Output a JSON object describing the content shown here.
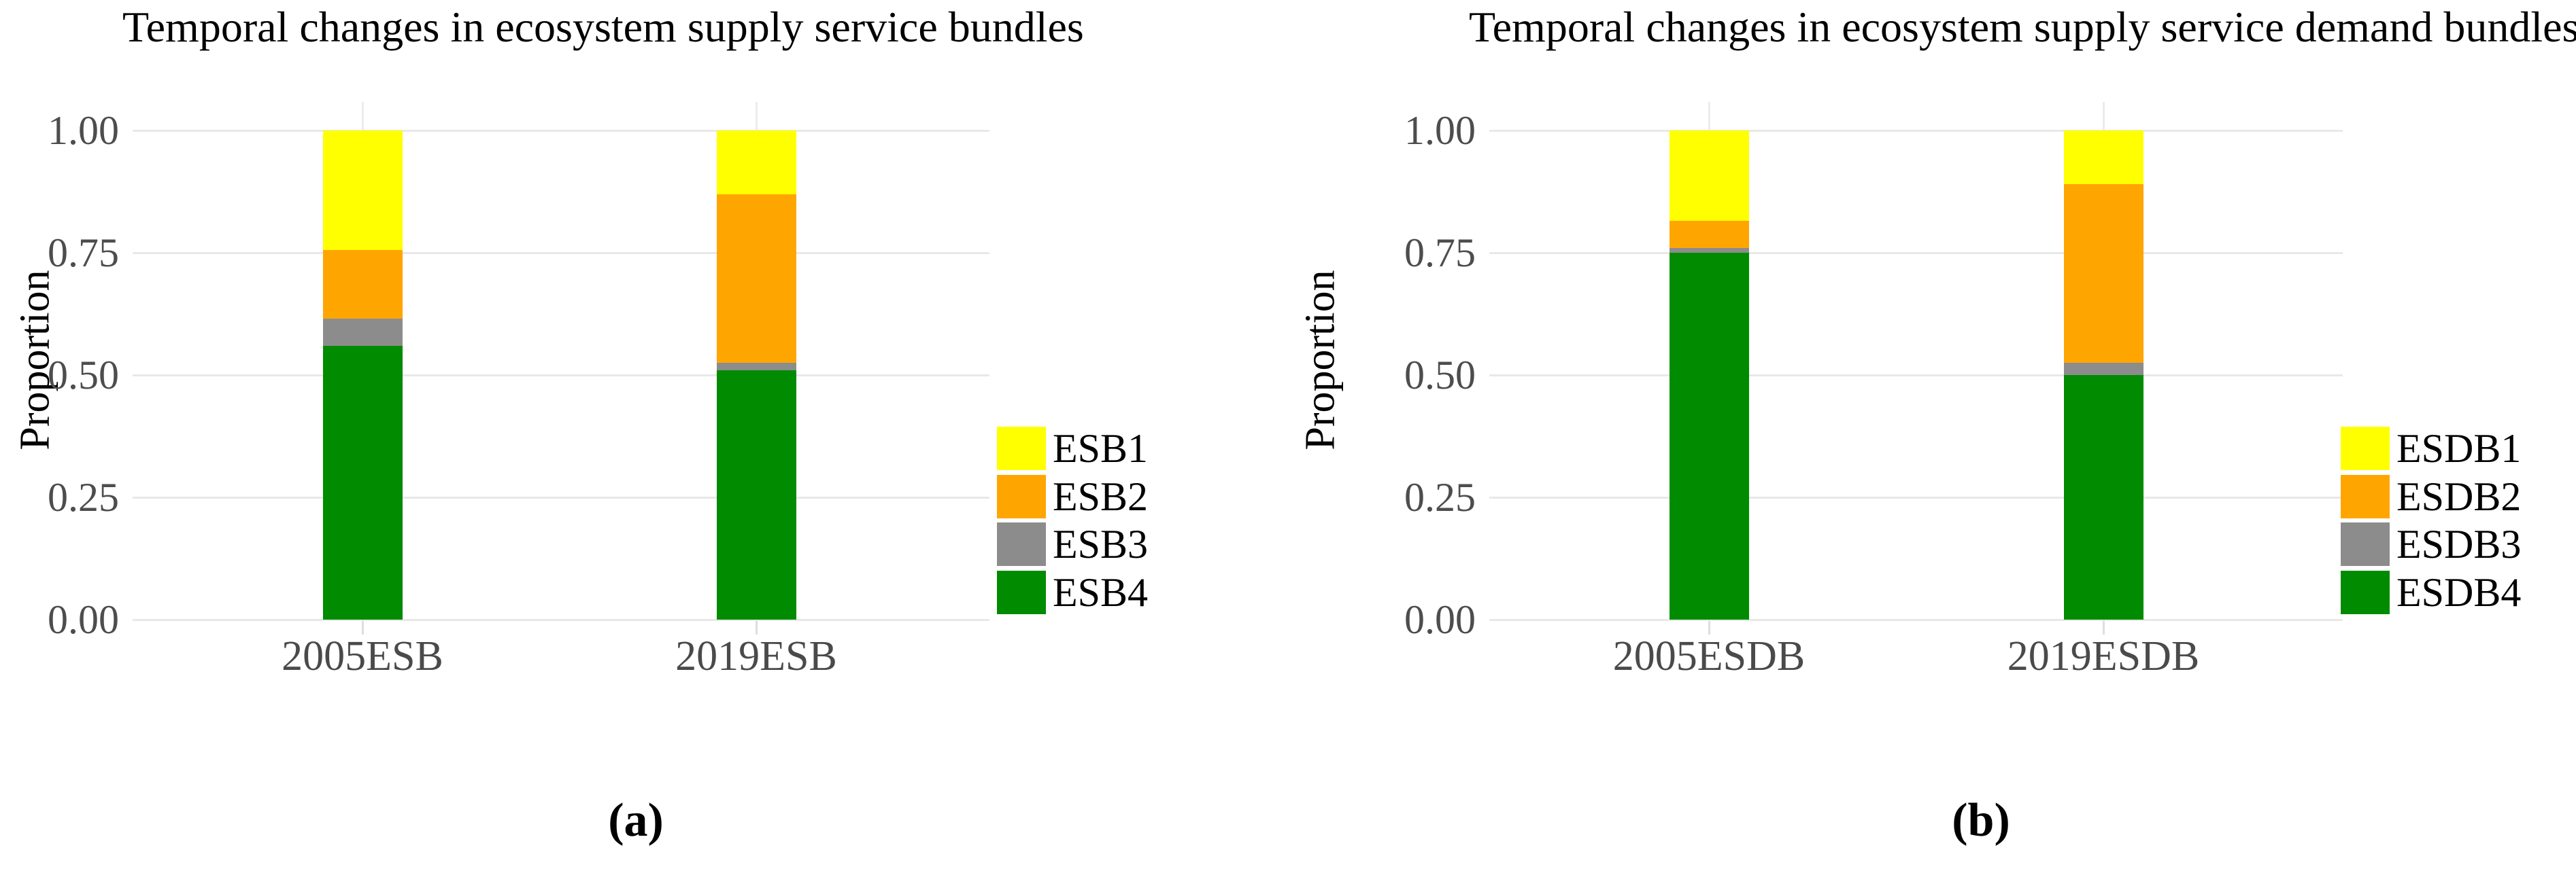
{
  "figure_background": "#ffffff",
  "text_colors": {
    "axis_tick_text": "#4d4d4d",
    "title_text": "#000000"
  },
  "grid_color": "#e8e8e8",
  "chart_data": [
    {
      "type": "bar",
      "stacked": true,
      "title": "Temporal changes in ecosystem supply service bundles",
      "xlabel": "",
      "ylabel": "Proportion",
      "categories": [
        "2005ESB",
        "2019ESB"
      ],
      "series": [
        {
          "name": "ESB1",
          "color": "#FFFF00",
          "values": [
            0.245,
            0.13
          ]
        },
        {
          "name": "ESB2",
          "color": "#FFA500",
          "values": [
            0.14,
            0.345
          ]
        },
        {
          "name": "ESB3",
          "color": "#8C8C8C",
          "values": [
            0.055,
            0.015
          ]
        },
        {
          "name": "ESB4",
          "color": "#008B00",
          "values": [
            0.56,
            0.51
          ]
        }
      ],
      "ylim": [
        0,
        1
      ],
      "yticks": [
        0,
        0.25,
        0.5,
        0.75,
        1.0
      ],
      "ytick_labels": [
        "0.00",
        "0.25",
        "0.50",
        "0.75",
        "1.00"
      ],
      "grid": "horizontal",
      "legend_position": "right",
      "caption_label": "(a)"
    },
    {
      "type": "bar",
      "stacked": true,
      "title": "Temporal changes in ecosystem supply service demand bundles",
      "xlabel": "",
      "ylabel": "Proportion",
      "categories": [
        "2005ESDB",
        "2019ESDB"
      ],
      "series": [
        {
          "name": "ESDB1",
          "color": "#FFFF00",
          "values": [
            0.185,
            0.11
          ]
        },
        {
          "name": "ESDB2",
          "color": "#FFA500",
          "values": [
            0.055,
            0.365
          ]
        },
        {
          "name": "ESDB3",
          "color": "#8C8C8C",
          "values": [
            0.01,
            0.025
          ]
        },
        {
          "name": "ESDB4",
          "color": "#008B00",
          "values": [
            0.75,
            0.5
          ]
        }
      ],
      "ylim": [
        0,
        1
      ],
      "yticks": [
        0,
        0.25,
        0.5,
        0.75,
        1.0
      ],
      "ytick_labels": [
        "0.00",
        "0.25",
        "0.50",
        "0.75",
        "1.00"
      ],
      "grid": "horizontal",
      "legend_position": "right",
      "caption_label": "(b)"
    }
  ]
}
